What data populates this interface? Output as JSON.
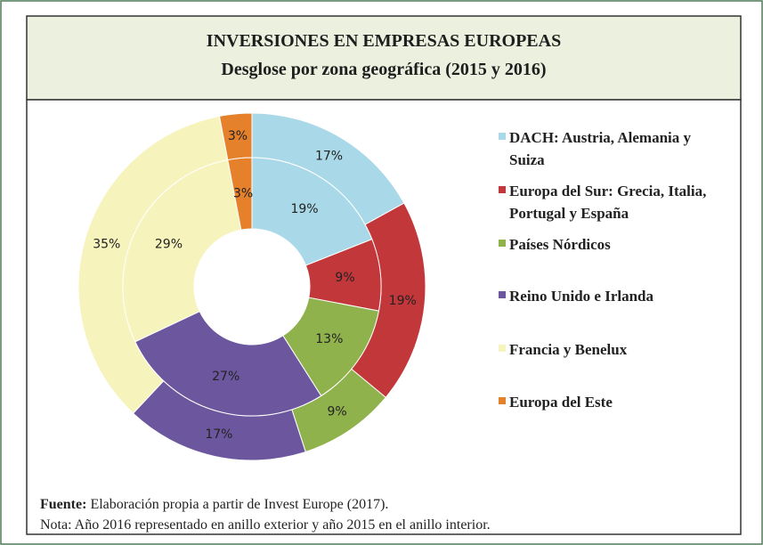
{
  "chart_data": {
    "type": "donut",
    "title": "INVERSIONES EN EMPRESAS EUROPEAS",
    "subtitle": "Desglose por zona geográfica (2015 y 2016)",
    "categories": [
      "DACH: Austria, Alemania y Suiza",
      "Europa del Sur: Grecia, Italia, Portugal y España",
      "Países Nórdicos",
      "Reino Unido e Irlanda",
      "Francia y Benelux",
      "Europa del Este"
    ],
    "colors": [
      "#a9d9e8",
      "#c2373a",
      "#8fb24c",
      "#6c579f",
      "#f6f3bc",
      "#e5802b"
    ],
    "series": [
      {
        "values": [
          17,
          19,
          9,
          17,
          35,
          3
        ],
        "value_labels": [
          "17%",
          "19%",
          "9%",
          "17%",
          "35%",
          "3%"
        ]
      },
      {
        "values": [
          19,
          9,
          13,
          27,
          29,
          3
        ],
        "value_labels": [
          "19%",
          "9%",
          "13%",
          "27%",
          "29%",
          "3%"
        ]
      }
    ],
    "note": {
      "source_label": "Fuente:",
      "source_text": "Elaboración propia a partir de Invest Europe (2017).",
      "text": "Nota: Año 2016 representado en anillo exterior y año 2015 en el anillo interior."
    }
  }
}
